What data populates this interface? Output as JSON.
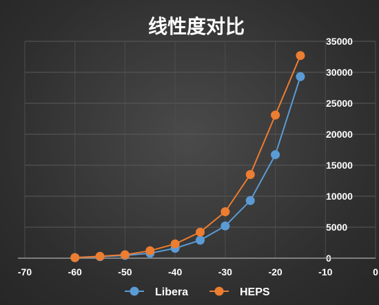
{
  "chart_data": {
    "type": "line",
    "title": "线性度对比",
    "xlabel": "",
    "ylabel": "",
    "xlim": [
      -70,
      0
    ],
    "ylim": [
      0,
      35000
    ],
    "x_ticks": [
      "-70",
      "-60",
      "-50",
      "-40",
      "-30",
      "-20",
      "-10",
      "0"
    ],
    "y_ticks": [
      "0",
      "5000",
      "10000",
      "15000",
      "20000",
      "25000",
      "30000",
      "35000"
    ],
    "grid": true,
    "legend_position": "bottom",
    "series": [
      {
        "name": "Libera",
        "color": "#5b9bd5",
        "x": [
          -60,
          -55,
          -50,
          -45,
          -40,
          -35,
          -30,
          -25,
          -20,
          -15
        ],
        "y": [
          80,
          250,
          450,
          800,
          1600,
          2900,
          5200,
          9300,
          16700,
          29300
        ]
      },
      {
        "name": "HEPS",
        "color": "#ed7d31",
        "x": [
          -60,
          -55,
          -50,
          -45,
          -40,
          -35,
          -30,
          -25,
          -20,
          -15
        ],
        "y": [
          100,
          300,
          550,
          1200,
          2300,
          4200,
          7500,
          13500,
          23100,
          32700
        ]
      }
    ]
  }
}
